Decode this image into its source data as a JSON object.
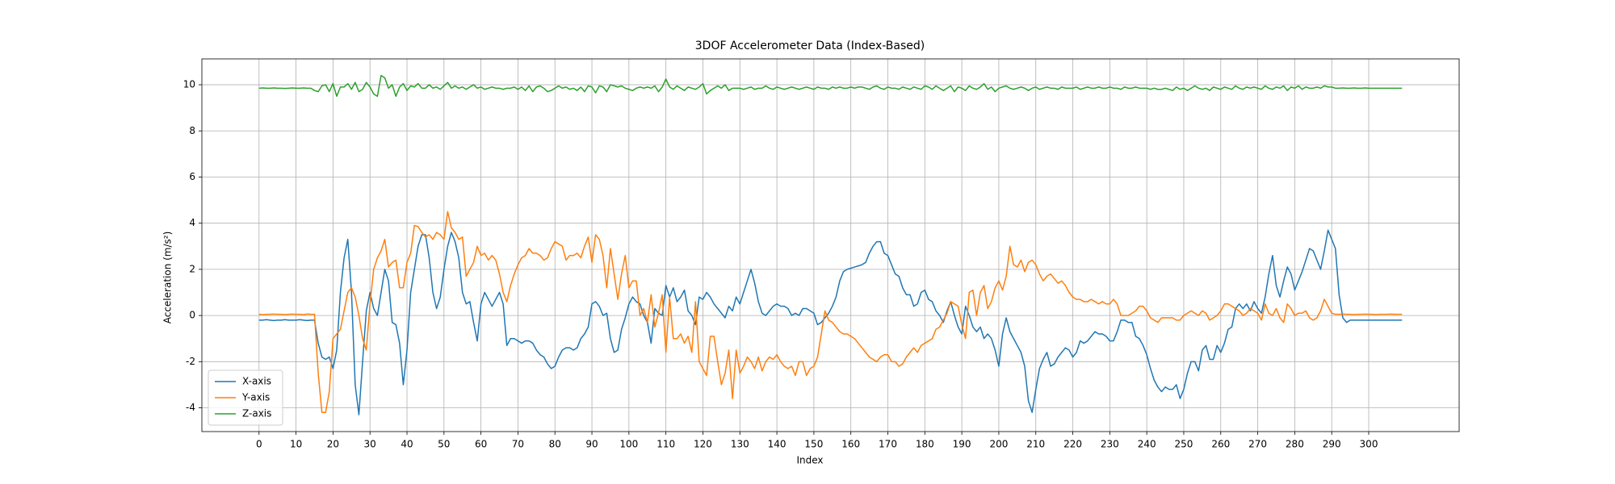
{
  "chart_data": {
    "type": "line",
    "title": "3DOF Accelerometer Data (Index-Based)",
    "x_label": "Index",
    "y_label": "Acceleration (m/s²)",
    "xlim": [
      -15.45,
      324.45
    ],
    "xticks": [
      0,
      10,
      20,
      30,
      40,
      50,
      60,
      70,
      80,
      90,
      100,
      110,
      120,
      130,
      140,
      150,
      160,
      170,
      180,
      190,
      200,
      210,
      220,
      230,
      240,
      250,
      260,
      270,
      280,
      290,
      300
    ],
    "ylim": [
      -5.03,
      11.12
    ],
    "yticks": [
      -4,
      -2,
      0,
      2,
      4,
      6,
      8,
      10
    ],
    "grid": true,
    "legend": "lower left",
    "series": [
      {
        "name": "X-axis",
        "color": "#1f77b4",
        "values": [
          -0.2,
          -0.2,
          -0.18,
          -0.2,
          -0.22,
          -0.2,
          -0.2,
          -0.18,
          -0.2,
          -0.2,
          -0.2,
          -0.18,
          -0.2,
          -0.22,
          -0.2,
          -0.2,
          -1.2,
          -1.8,
          -1.9,
          -1.8,
          -2.3,
          -1.5,
          1.0,
          2.5,
          3.3,
          1.0,
          -3.0,
          -4.3,
          -2.0,
          0.2,
          1.0,
          0.3,
          0.0,
          1.0,
          2.0,
          1.5,
          -0.3,
          -0.4,
          -1.2,
          -3.0,
          -1.5,
          1.0,
          2.0,
          3.0,
          3.5,
          3.5,
          2.5,
          1.0,
          0.3,
          0.8,
          2.0,
          3.0,
          3.6,
          3.2,
          2.5,
          1.0,
          0.5,
          0.6,
          -0.3,
          -1.1,
          0.5,
          1.0,
          0.7,
          0.4,
          0.7,
          1.0,
          0.5,
          -1.3,
          -1.0,
          -1.0,
          -1.1,
          -1.2,
          -1.1,
          -1.1,
          -1.2,
          -1.5,
          -1.7,
          -1.8,
          -2.1,
          -2.3,
          -2.2,
          -1.8,
          -1.5,
          -1.4,
          -1.4,
          -1.5,
          -1.4,
          -1.0,
          -0.8,
          -0.5,
          0.5,
          0.6,
          0.4,
          0.0,
          0.1,
          -1.0,
          -1.6,
          -1.5,
          -0.6,
          -0.1,
          0.5,
          0.8,
          0.6,
          0.5,
          0.0,
          -0.3,
          -1.2,
          0.3,
          0.1,
          0.0,
          1.3,
          0.8,
          1.2,
          0.6,
          0.8,
          1.1,
          0.2,
          0.0,
          -0.4,
          0.8,
          0.7,
          1.0,
          0.8,
          0.5,
          0.3,
          0.1,
          -0.1,
          0.4,
          0.2,
          0.8,
          0.5,
          1.0,
          1.5,
          2.0,
          1.4,
          0.6,
          0.1,
          0.0,
          0.2,
          0.4,
          0.5,
          0.4,
          0.4,
          0.3,
          0.0,
          0.1,
          0.0,
          0.3,
          0.3,
          0.2,
          0.1,
          -0.4,
          -0.3,
          -0.1,
          0.1,
          0.4,
          0.8,
          1.5,
          1.9,
          2.0,
          2.05,
          2.1,
          2.15,
          2.2,
          2.3,
          2.7,
          3.0,
          3.2,
          3.2,
          2.7,
          2.6,
          2.2,
          1.8,
          1.7,
          1.2,
          0.9,
          0.9,
          0.4,
          0.5,
          1.0,
          1.1,
          0.7,
          0.6,
          0.2,
          0.0,
          -0.3,
          0.2,
          0.6,
          0.0,
          -0.5,
          -0.8,
          0.4,
          0.0,
          -0.5,
          -0.7,
          -0.5,
          -1.0,
          -0.8,
          -1.0,
          -1.5,
          -2.2,
          -0.8,
          -0.1,
          -0.7,
          -1.0,
          -1.3,
          -1.6,
          -2.2,
          -3.7,
          -4.2,
          -3.2,
          -2.3,
          -1.9,
          -1.6,
          -2.2,
          -2.1,
          -1.8,
          -1.6,
          -1.4,
          -1.5,
          -1.8,
          -1.6,
          -1.1,
          -1.2,
          -1.1,
          -0.9,
          -0.7,
          -0.8,
          -0.8,
          -0.9,
          -1.1,
          -1.1,
          -0.7,
          -0.2,
          -0.2,
          -0.3,
          -0.3,
          -0.9,
          -1.0,
          -1.3,
          -1.7,
          -2.3,
          -2.8,
          -3.1,
          -3.3,
          -3.1,
          -3.2,
          -3.2,
          -3.0,
          -3.6,
          -3.2,
          -2.5,
          -2.0,
          -2.0,
          -2.4,
          -1.5,
          -1.3,
          -1.9,
          -1.9,
          -1.3,
          -1.6,
          -1.2,
          -0.6,
          -0.5,
          0.3,
          0.5,
          0.3,
          0.5,
          0.2,
          0.6,
          0.3,
          0.1,
          0.8,
          1.8,
          2.6,
          1.3,
          0.8,
          1.5,
          2.1,
          1.8,
          1.1,
          1.5,
          1.9,
          2.4,
          2.9,
          2.8,
          2.4,
          2.0,
          2.8,
          3.7,
          3.3,
          2.9,
          0.9,
          -0.1,
          -0.3,
          -0.2,
          -0.2,
          -0.2,
          -0.2,
          -0.2,
          -0.2,
          -0.2,
          -0.2,
          -0.2,
          -0.2,
          -0.2,
          -0.2,
          -0.2,
          -0.2,
          -0.2
        ]
      },
      {
        "name": "Y-axis",
        "color": "#ff7f0e",
        "values": [
          0.05,
          0.04,
          0.05,
          0.05,
          0.06,
          0.05,
          0.05,
          0.04,
          0.05,
          0.06,
          0.05,
          0.05,
          0.04,
          0.06,
          0.05,
          0.05,
          -2.5,
          -4.2,
          -4.2,
          -3.3,
          -1.0,
          -0.8,
          -0.6,
          0.2,
          1.0,
          1.2,
          0.8,
          0.0,
          -1.0,
          -1.5,
          0.5,
          2.0,
          2.5,
          2.8,
          3.3,
          2.1,
          2.3,
          2.4,
          1.2,
          1.2,
          2.3,
          2.7,
          3.9,
          3.85,
          3.6,
          3.4,
          3.5,
          3.3,
          3.6,
          3.5,
          3.3,
          4.5,
          3.8,
          3.6,
          3.3,
          3.4,
          1.7,
          2.0,
          2.3,
          3.0,
          2.6,
          2.7,
          2.4,
          2.6,
          2.4,
          1.8,
          1.0,
          0.6,
          1.3,
          1.8,
          2.2,
          2.5,
          2.6,
          2.9,
          2.7,
          2.7,
          2.6,
          2.4,
          2.5,
          2.9,
          3.2,
          3.1,
          3.0,
          2.4,
          2.6,
          2.6,
          2.7,
          2.5,
          3.0,
          3.4,
          2.3,
          3.5,
          3.3,
          2.6,
          1.2,
          2.9,
          1.8,
          0.7,
          1.8,
          2.6,
          1.2,
          1.5,
          1.5,
          0.0,
          0.3,
          -0.3,
          0.9,
          -0.5,
          0.1,
          0.9,
          -1.6,
          0.8,
          -1.0,
          -1.0,
          -0.8,
          -1.2,
          -0.9,
          -1.6,
          0.6,
          -2.0,
          -2.3,
          -2.6,
          -0.9,
          -0.9,
          -2.0,
          -3.0,
          -2.5,
          -1.5,
          -3.6,
          -1.5,
          -2.5,
          -2.2,
          -1.8,
          -2.0,
          -2.3,
          -1.8,
          -2.4,
          -2.0,
          -1.8,
          -1.9,
          -1.7,
          -2.0,
          -2.2,
          -2.3,
          -2.2,
          -2.6,
          -2.0,
          -2.0,
          -2.6,
          -2.3,
          -2.2,
          -1.8,
          -0.8,
          0.2,
          -0.2,
          -0.3,
          -0.5,
          -0.7,
          -0.8,
          -0.8,
          -0.9,
          -1.0,
          -1.2,
          -1.4,
          -1.6,
          -1.8,
          -1.9,
          -2.0,
          -1.8,
          -1.7,
          -1.7,
          -2.0,
          -2.0,
          -2.2,
          -2.1,
          -1.8,
          -1.6,
          -1.4,
          -1.6,
          -1.3,
          -1.2,
          -1.1,
          -1.0,
          -0.6,
          -0.5,
          -0.2,
          0.1,
          0.6,
          0.5,
          0.4,
          -0.4,
          -1.0,
          1.0,
          1.1,
          0.0,
          1.0,
          1.3,
          0.3,
          0.6,
          1.2,
          1.5,
          1.1,
          1.7,
          3.0,
          2.2,
          2.1,
          2.4,
          1.9,
          2.3,
          2.4,
          2.2,
          1.8,
          1.5,
          1.7,
          1.8,
          1.6,
          1.4,
          1.5,
          1.3,
          1.0,
          0.8,
          0.7,
          0.7,
          0.6,
          0.6,
          0.7,
          0.6,
          0.5,
          0.6,
          0.5,
          0.5,
          0.7,
          0.5,
          0.0,
          0.0,
          0.0,
          0.1,
          0.2,
          0.4,
          0.4,
          0.2,
          -0.1,
          -0.2,
          -0.3,
          -0.1,
          -0.1,
          -0.1,
          -0.1,
          -0.2,
          -0.2,
          0.0,
          0.1,
          0.2,
          0.1,
          0.0,
          0.2,
          0.1,
          -0.2,
          -0.1,
          0.0,
          0.2,
          0.5,
          0.5,
          0.4,
          0.3,
          0.2,
          0.0,
          0.1,
          0.3,
          0.2,
          0.1,
          -0.2,
          0.5,
          0.1,
          0.0,
          0.3,
          -0.1,
          -0.3,
          0.5,
          0.3,
          0.0,
          0.1,
          0.1,
          0.2,
          -0.1,
          -0.2,
          -0.1,
          0.2,
          0.7,
          0.4,
          0.1,
          0.05,
          0.05,
          0.06,
          0.05,
          0.05,
          0.04,
          0.05,
          0.05,
          0.06,
          0.05,
          0.05,
          0.04,
          0.05,
          0.05,
          0.05,
          0.06,
          0.05,
          0.05,
          0.05
        ]
      },
      {
        "name": "Z-axis",
        "color": "#2ca02c",
        "values": [
          9.85,
          9.86,
          9.85,
          9.85,
          9.86,
          9.85,
          9.85,
          9.84,
          9.85,
          9.86,
          9.85,
          9.85,
          9.86,
          9.85,
          9.85,
          9.75,
          9.7,
          9.95,
          10.0,
          9.7,
          10.05,
          9.5,
          9.9,
          9.9,
          10.05,
          9.8,
          10.1,
          9.7,
          9.8,
          10.1,
          9.9,
          9.6,
          9.5,
          10.4,
          10.3,
          9.85,
          10.0,
          9.5,
          9.9,
          10.05,
          9.75,
          9.95,
          9.9,
          10.05,
          9.85,
          9.85,
          10.0,
          9.85,
          9.9,
          9.8,
          9.95,
          10.1,
          9.85,
          9.95,
          9.85,
          9.9,
          9.8,
          9.9,
          10.0,
          9.85,
          9.9,
          9.8,
          9.85,
          9.9,
          9.85,
          9.85,
          9.8,
          9.85,
          9.85,
          9.9,
          9.8,
          9.9,
          9.75,
          9.95,
          9.7,
          9.9,
          9.95,
          9.85,
          9.7,
          9.75,
          9.85,
          9.95,
          9.85,
          9.9,
          9.8,
          9.85,
          9.75,
          9.9,
          9.7,
          9.95,
          9.9,
          9.65,
          9.95,
          9.9,
          9.7,
          10.0,
          9.95,
          9.9,
          9.95,
          9.85,
          9.8,
          9.75,
          9.85,
          9.9,
          9.85,
          9.9,
          9.85,
          9.95,
          9.7,
          9.9,
          10.25,
          9.9,
          9.8,
          9.95,
          9.85,
          9.75,
          9.9,
          9.85,
          9.8,
          9.9,
          10.05,
          9.6,
          9.75,
          9.85,
          9.95,
          9.85,
          10.0,
          9.75,
          9.85,
          9.85,
          9.85,
          9.8,
          9.85,
          9.9,
          9.8,
          9.85,
          9.85,
          9.95,
          9.85,
          9.8,
          9.9,
          9.85,
          9.8,
          9.85,
          9.9,
          9.85,
          9.8,
          9.85,
          9.9,
          9.85,
          9.8,
          9.9,
          9.85,
          9.85,
          9.8,
          9.9,
          9.85,
          9.9,
          9.85,
          9.85,
          9.9,
          9.85,
          9.9,
          9.9,
          9.85,
          9.8,
          9.9,
          9.95,
          9.85,
          9.8,
          9.9,
          9.85,
          9.85,
          9.8,
          9.9,
          9.85,
          9.8,
          9.9,
          9.85,
          9.8,
          9.95,
          9.9,
          9.8,
          9.95,
          9.85,
          9.75,
          9.85,
          9.95,
          9.7,
          9.9,
          9.85,
          9.75,
          9.95,
          9.85,
          9.8,
          9.9,
          10.05,
          9.8,
          9.9,
          9.7,
          9.85,
          9.9,
          9.95,
          9.85,
          9.8,
          9.85,
          9.9,
          9.85,
          9.75,
          9.85,
          9.9,
          9.8,
          9.85,
          9.9,
          9.85,
          9.85,
          9.8,
          9.9,
          9.85,
          9.85,
          9.85,
          9.9,
          9.8,
          9.85,
          9.9,
          9.85,
          9.85,
          9.9,
          9.85,
          9.85,
          9.9,
          9.85,
          9.85,
          9.8,
          9.9,
          9.85,
          9.85,
          9.9,
          9.85,
          9.85,
          9.85,
          9.8,
          9.85,
          9.8,
          9.8,
          9.85,
          9.8,
          9.75,
          9.9,
          9.8,
          9.85,
          9.75,
          9.85,
          9.95,
          9.85,
          9.8,
          9.85,
          9.75,
          9.9,
          9.85,
          9.8,
          9.9,
          9.85,
          9.8,
          9.95,
          9.85,
          9.8,
          9.9,
          9.85,
          9.9,
          9.85,
          9.8,
          9.95,
          9.85,
          9.8,
          9.9,
          9.85,
          9.95,
          9.75,
          9.9,
          9.85,
          9.95,
          9.8,
          9.9,
          9.85,
          9.85,
          9.9,
          9.85,
          9.95,
          9.9,
          9.9,
          9.85,
          9.85,
          9.86,
          9.85,
          9.85,
          9.86,
          9.85,
          9.85,
          9.86,
          9.85,
          9.85,
          9.85,
          9.85,
          9.85,
          9.85,
          9.85,
          9.85,
          9.85,
          9.85
        ]
      }
    ]
  }
}
